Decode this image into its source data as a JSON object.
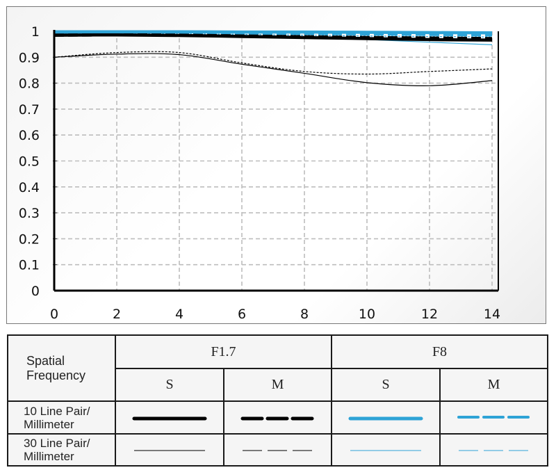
{
  "chart_data": {
    "type": "line",
    "title": "",
    "xlabel": "",
    "ylabel": "",
    "xlim": [
      0,
      14
    ],
    "ylim": [
      0,
      1
    ],
    "x_ticks": [
      "0",
      "2",
      "4",
      "6",
      "8",
      "10",
      "12",
      "14"
    ],
    "y_ticks": [
      "0",
      "0.1",
      "0.2",
      "0.3",
      "0.4",
      "0.5",
      "0.6",
      "0.7",
      "0.8",
      "0.9",
      "1"
    ],
    "grid": true,
    "legend_position": "bottom-table",
    "x": [
      0,
      2,
      4,
      6,
      8,
      10,
      12,
      14
    ],
    "series": [
      {
        "name": "F8 S 10 lp/mm",
        "color": "#2ea3d6",
        "style": "thick-solid",
        "values": [
          0.998,
          0.998,
          0.998,
          0.997,
          0.997,
          0.996,
          0.995,
          0.994
        ]
      },
      {
        "name": "F8 M 10 lp/mm",
        "color": "#2ea3d6",
        "style": "thick-dashed",
        "values": [
          0.995,
          0.995,
          0.994,
          0.993,
          0.992,
          0.99,
          0.988,
          0.986
        ]
      },
      {
        "name": "F8 S 30 lp/mm",
        "color": "#2ea3d6",
        "style": "thin-solid",
        "values": [
          0.99,
          0.99,
          0.988,
          0.985,
          0.978,
          0.968,
          0.958,
          0.948
        ]
      },
      {
        "name": "F8 M 30 lp/mm",
        "color": "#2ea3d6",
        "style": "thin-dashed",
        "values": [
          0.992,
          0.992,
          0.99,
          0.988,
          0.985,
          0.982,
          0.98,
          0.978
        ]
      },
      {
        "name": "F1.7 S 10 lp/mm",
        "color": "#000000",
        "style": "thick-solid",
        "values": [
          0.985,
          0.986,
          0.984,
          0.98,
          0.976,
          0.972,
          0.968,
          0.966
        ]
      },
      {
        "name": "F1.7 M 10 lp/mm",
        "color": "#000000",
        "style": "thick-dashed",
        "values": [
          0.985,
          0.986,
          0.985,
          0.982,
          0.979,
          0.976,
          0.974,
          0.972
        ]
      },
      {
        "name": "F1.7 S 30 lp/mm",
        "color": "#000000",
        "style": "thin-solid",
        "values": [
          0.9,
          0.912,
          0.91,
          0.873,
          0.838,
          0.802,
          0.79,
          0.81
        ]
      },
      {
        "name": "F1.7 M 30 lp/mm",
        "color": "#000000",
        "style": "thin-dashed",
        "values": [
          0.9,
          0.918,
          0.918,
          0.878,
          0.845,
          0.835,
          0.845,
          0.855
        ]
      }
    ]
  },
  "legend_table": {
    "corner_label": "Spatial Frequency",
    "groups": [
      {
        "label": "F1.7",
        "sub": [
          "S",
          "M"
        ]
      },
      {
        "label": "F8",
        "sub": [
          "S",
          "M"
        ]
      }
    ],
    "rows": [
      {
        "label": "10 Line Pair/ Millimeter",
        "line1": "10 Line Pair/",
        "line2": "Millimeter"
      },
      {
        "label": "30 Line Pair/ Millimeter",
        "line1": "30 Line Pair/",
        "line2": "Millimeter"
      }
    ],
    "colors": {
      "f17": "#000000",
      "f8": "#2ea3d6"
    }
  }
}
